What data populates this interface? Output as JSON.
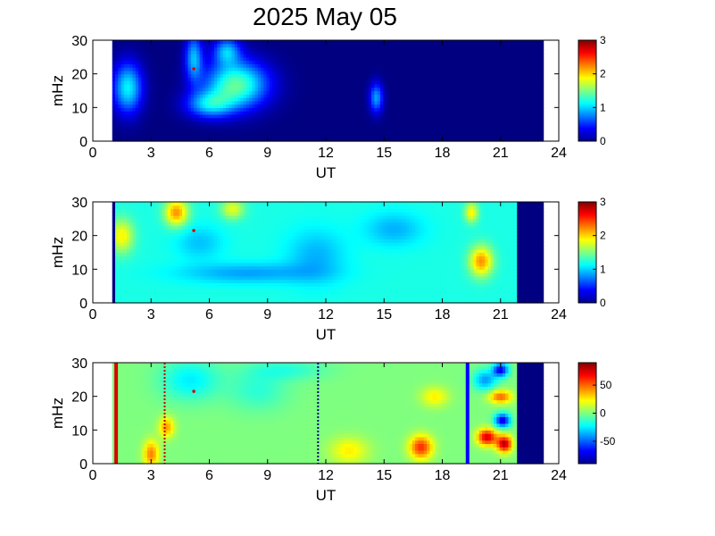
{
  "title": "2025 May 05",
  "chart_data": [
    {
      "type": "heatmap",
      "xlabel": "UT",
      "ylabel": "mHz",
      "xlim": [
        0,
        24
      ],
      "ylim": [
        0,
        30
      ],
      "xticks": [
        0,
        3,
        6,
        9,
        12,
        15,
        18,
        21,
        24
      ],
      "yticks": [
        0,
        10,
        20,
        30
      ],
      "data_extent_ut": [
        1.0,
        23.1
      ],
      "colorbar": {
        "range": [
          0,
          3
        ],
        "ticks": [
          0,
          1,
          2,
          3
        ]
      },
      "background_level": 0,
      "blobs": [
        {
          "ut": 1.8,
          "mhz": 16,
          "rx": 0.75,
          "ry": 7.5,
          "v": 1.1
        },
        {
          "ut": 5.2,
          "mhz": 25,
          "rx": 0.45,
          "ry": 7,
          "v": 0.9
        },
        {
          "ut": 6.9,
          "mhz": 27,
          "rx": 0.7,
          "ry": 4,
          "v": 0.85
        },
        {
          "ut": 7.4,
          "mhz": 17,
          "rx": 1.6,
          "ry": 7,
          "v": 1.4
        },
        {
          "ut": 6.0,
          "mhz": 11,
          "rx": 1.2,
          "ry": 4,
          "v": 0.9
        },
        {
          "ut": 14.6,
          "mhz": 13,
          "rx": 0.35,
          "ry": 4.5,
          "v": 0.85
        }
      ],
      "marker": {
        "ut": 5.2,
        "mhz": 21.5
      }
    },
    {
      "type": "heatmap",
      "xlabel": "UT",
      "ylabel": "mHz",
      "xlim": [
        0,
        24
      ],
      "ylim": [
        0,
        30
      ],
      "xticks": [
        0,
        3,
        6,
        9,
        12,
        15,
        18,
        21,
        24
      ],
      "yticks": [
        0,
        10,
        20,
        30
      ],
      "data_extent_ut": [
        1.0,
        23.1
      ],
      "valid_range_ut": [
        1.15,
        21.8
      ],
      "colorbar": {
        "range": [
          0,
          3
        ],
        "ticks": [
          0,
          1,
          2,
          3
        ]
      },
      "background_level": 1.2,
      "blobs": [
        {
          "ut": 1.5,
          "mhz": 20,
          "rx": 0.6,
          "ry": 5,
          "v": 0.7
        },
        {
          "ut": 4.3,
          "mhz": 27,
          "rx": 0.6,
          "ry": 4,
          "v": 1.0
        },
        {
          "ut": 7.2,
          "mhz": 28,
          "rx": 0.6,
          "ry": 3,
          "v": 0.6
        },
        {
          "ut": 19.5,
          "mhz": 27,
          "rx": 0.35,
          "ry": 3,
          "v": 0.7
        },
        {
          "ut": 20.0,
          "mhz": 12.5,
          "rx": 0.6,
          "ry": 4.5,
          "v": 1.0
        },
        {
          "ut": 8.0,
          "mhz": 9,
          "rx": 3.5,
          "ry": 3,
          "v": -0.35
        },
        {
          "ut": 11.5,
          "mhz": 14,
          "rx": 1.5,
          "ry": 8,
          "v": -0.3
        },
        {
          "ut": 15.5,
          "mhz": 22,
          "rx": 1.5,
          "ry": 5,
          "v": -0.3
        },
        {
          "ut": 5.5,
          "mhz": 18,
          "rx": 1.2,
          "ry": 5,
          "v": -0.25
        }
      ],
      "marker": {
        "ut": 5.2,
        "mhz": 21.5
      }
    },
    {
      "type": "heatmap",
      "xlabel": "UT",
      "ylabel": "mHz",
      "xlim": [
        0,
        24
      ],
      "ylim": [
        0,
        30
      ],
      "xticks": [
        0,
        3,
        6,
        9,
        12,
        15,
        18,
        21,
        24
      ],
      "yticks": [
        0,
        10,
        20,
        30
      ],
      "data_extent_ut": [
        1.0,
        23.1
      ],
      "valid_range_ut": [
        1.0,
        21.8
      ],
      "colorbar": {
        "range": [
          -90,
          90
        ],
        "ticks": [
          50,
          0,
          -50
        ]
      },
      "background_level": 0,
      "blobs": [
        {
          "ut": 3.0,
          "mhz": 3,
          "rx": 0.4,
          "ry": 4,
          "v": 45
        },
        {
          "ut": 3.8,
          "mhz": 11,
          "rx": 0.4,
          "ry": 3,
          "v": 40
        },
        {
          "ut": 16.9,
          "mhz": 5,
          "rx": 0.6,
          "ry": 3.5,
          "v": 60
        },
        {
          "ut": 13.2,
          "mhz": 4,
          "rx": 1.0,
          "ry": 4,
          "v": 25
        },
        {
          "ut": 17.6,
          "mhz": 20,
          "rx": 0.7,
          "ry": 3,
          "v": 25
        },
        {
          "ut": 20.3,
          "mhz": 8,
          "rx": 0.5,
          "ry": 2.5,
          "v": 75
        },
        {
          "ut": 21.2,
          "mhz": 6,
          "rx": 0.4,
          "ry": 2.5,
          "v": 80
        },
        {
          "ut": 21.0,
          "mhz": 20,
          "rx": 0.6,
          "ry": 2,
          "v": 50
        },
        {
          "ut": 21.1,
          "mhz": 13,
          "rx": 0.4,
          "ry": 2,
          "v": -75
        },
        {
          "ut": 20.2,
          "mhz": 25,
          "rx": 0.6,
          "ry": 3,
          "v": -40
        },
        {
          "ut": 21.0,
          "mhz": 28,
          "rx": 0.4,
          "ry": 2,
          "v": -70
        },
        {
          "ut": 5.0,
          "mhz": 25,
          "rx": 1.5,
          "ry": 6,
          "v": -25
        },
        {
          "ut": 8.5,
          "mhz": 22,
          "rx": 1.5,
          "ry": 6,
          "v": -15
        },
        {
          "ut": 10.0,
          "mhz": 28,
          "rx": 2.0,
          "ry": 3,
          "v": -15
        }
      ],
      "vertical_lines": [
        {
          "ut": 1.2,
          "color": "#dd0000",
          "style": "solid"
        },
        {
          "ut": 3.7,
          "color": "#c00000",
          "style": "dotted"
        },
        {
          "ut": 11.6,
          "color": "#000090",
          "style": "dotted"
        },
        {
          "ut": 19.3,
          "color": "#0000ff",
          "style": "solid"
        }
      ],
      "marker": {
        "ut": 5.2,
        "mhz": 21.5
      }
    }
  ]
}
